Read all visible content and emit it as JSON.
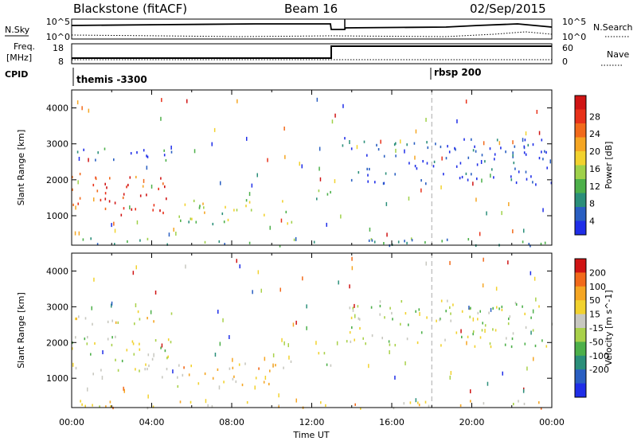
{
  "header": {
    "station": "Blackstone (fitACF)",
    "beam": "Beam 16",
    "date": "02/Sep/2015"
  },
  "panels": {
    "nsky_label": "N.Sky",
    "nsearch_label": "N.Search",
    "nsky_tick_top": "10^5",
    "nsky_tick_bottom": "10^0",
    "nsearch_tick_top": "10^5",
    "nsearch_tick_bottom": "10^0",
    "freq_label_1": "Freq.",
    "freq_label_2": "[MHz]",
    "freq_tick_top": "18",
    "freq_tick_bottom": "8",
    "nave_label": "Nave",
    "nave_tick_top": "60",
    "nave_tick_bottom": "0",
    "cpid_label": "CPID",
    "cpid_1": "themis -3300",
    "cpid_2": "rbsp 200"
  },
  "chart_data": [
    {
      "type": "heatmap",
      "quantity": "Power",
      "ylabel": "Slant Range [km]",
      "ylim": [
        180,
        4500
      ],
      "yticks": [
        1000,
        2000,
        3000,
        4000
      ],
      "xlim": [
        0,
        24
      ],
      "colorbar": {
        "label": "Power [dB]",
        "ticks": [
          "4",
          "8",
          "12",
          "16",
          "20",
          "24",
          "28"
        ],
        "colors": [
          "#1f2ee8",
          "#2a5fc2",
          "#2b8f7a",
          "#4db04a",
          "#9fd14a",
          "#f2d22e",
          "#f5a623",
          "#f26a1b",
          "#e8321a",
          "#d01414"
        ]
      },
      "regions": [
        {
          "t0": 0.0,
          "t1": 5.0,
          "r0": 1050,
          "r1": 2200,
          "level": 0.85
        },
        {
          "t0": 0.0,
          "t1": 5.2,
          "r0": 2500,
          "r1": 2900,
          "level": 0.15
        },
        {
          "t0": 5.2,
          "t1": 11.0,
          "r0": 800,
          "r1": 1500,
          "level": 0.45
        },
        {
          "t0": 11.8,
          "t1": 13.0,
          "r0": 1300,
          "r1": 1800,
          "level": 0.3
        },
        {
          "t0": 13.5,
          "t1": 24.0,
          "r0": 1900,
          "r1": 3200,
          "level": 0.1
        },
        {
          "t0": 0.0,
          "t1": 24.0,
          "r0": 180,
          "r1": 400,
          "level": 0.3
        }
      ]
    },
    {
      "type": "heatmap",
      "quantity": "Velocity",
      "ylabel": "Slant Range [km]",
      "ylim": [
        180,
        4500
      ],
      "yticks": [
        1000,
        2000,
        3000,
        4000
      ],
      "xlim": [
        0,
        24
      ],
      "xticks": [
        "00:00",
        "04:00",
        "08:00",
        "12:00",
        "16:00",
        "20:00",
        "00:00"
      ],
      "xlabel": "Time UT",
      "colorbar": {
        "label": "Velocity [m s^-1]",
        "ticks": [
          "200",
          "100",
          "50",
          "15",
          "-15",
          "-50",
          "-100",
          "-200"
        ],
        "colors": [
          "#1f2ee8",
          "#2a5fc2",
          "#2b8f7a",
          "#4db04a",
          "#a9d14a",
          "#c8c8c0",
          "#f2d22e",
          "#f5a623",
          "#f26a1b",
          "#d01414"
        ]
      },
      "regions": [
        {
          "t0": 0.0,
          "t1": 5.0,
          "r0": 1050,
          "r1": 2200,
          "level": 0.5
        },
        {
          "t0": 0.0,
          "t1": 5.2,
          "r0": 2500,
          "r1": 2900,
          "level": 0.6
        },
        {
          "t0": 5.2,
          "t1": 11.0,
          "r0": 800,
          "r1": 1500,
          "level": 0.65
        },
        {
          "t0": 11.8,
          "t1": 13.0,
          "r0": 1300,
          "r1": 1800,
          "level": 0.5
        },
        {
          "t0": 13.5,
          "t1": 24.0,
          "r0": 1900,
          "r1": 3200,
          "level": 0.5
        },
        {
          "t0": 0.0,
          "t1": 24.0,
          "r0": 180,
          "r1": 400,
          "level": 0.65
        }
      ]
    }
  ]
}
